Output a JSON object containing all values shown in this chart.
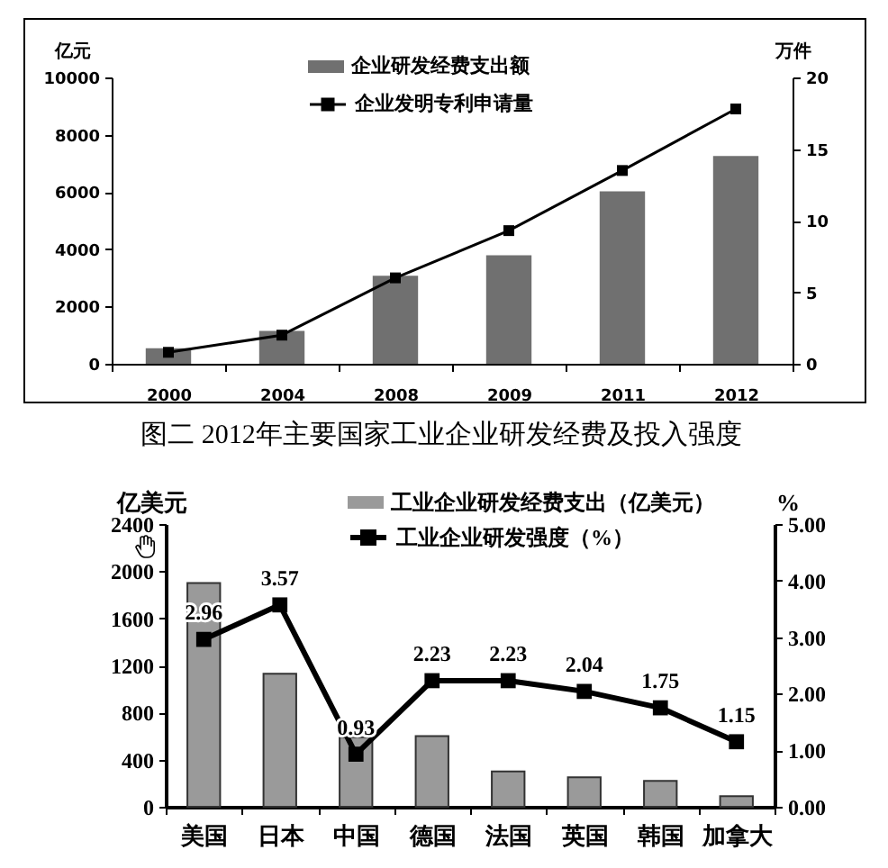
{
  "chart_data": [
    {
      "type": "bar",
      "categories": [
        "2000",
        "2004",
        "2008",
        "2009",
        "2011",
        "2012"
      ],
      "series": [
        {
          "name": "企业研发经费支出额",
          "color": "#707070",
          "values": [
            540,
            1150,
            3070,
            3790,
            6020,
            7260
          ]
        },
        {
          "name": "企业发明专利申请量",
          "type": "line",
          "axis": "y2",
          "color": "#000000",
          "values": [
            0.8,
            2.0,
            6.0,
            9.3,
            13.5,
            17.8
          ]
        }
      ],
      "ylabel": "亿元",
      "y2label": "万件",
      "ylim": [
        0,
        10000
      ],
      "yticks": [
        0,
        2000,
        4000,
        6000,
        8000,
        10000
      ],
      "y2lim": [
        0,
        20
      ],
      "y2ticks": [
        0,
        5,
        10,
        15,
        20
      ],
      "legend": "top",
      "marker": "square"
    },
    {
      "type": "bar",
      "title": "图二 2012年主要国家工业企业研发经费及投入强度",
      "categories": [
        "美国",
        "日本",
        "中国",
        "德国",
        "法国",
        "英国",
        "韩国",
        "加拿大"
      ],
      "series": [
        {
          "name": "工业企业研发经费支出（亿美元）",
          "color": "#9a9a9a",
          "values": [
            1900,
            1130,
            590,
            600,
            300,
            250,
            220,
            90
          ]
        },
        {
          "name": "工业企业研发强度（%）",
          "type": "line",
          "axis": "y2",
          "color": "#000000",
          "values": [
            2.96,
            3.57,
            0.93,
            2.23,
            2.23,
            2.04,
            1.75,
            1.15
          ],
          "value_labels": [
            "2.96",
            "3.57",
            "0.93",
            "2.23",
            "2.23",
            "2.04",
            "1.75",
            "1.15"
          ]
        }
      ],
      "ylabel": "亿美元",
      "y2label": "%",
      "ylim": [
        0,
        2400
      ],
      "yticks": [
        0,
        400,
        800,
        1200,
        1600,
        2000,
        2400
      ],
      "y2lim": [
        0,
        5
      ],
      "y2ticks": [
        {
          "value": 0,
          "label": "0.00"
        },
        {
          "value": 1,
          "label": "1.00"
        },
        {
          "value": 2,
          "label": "2.00"
        },
        {
          "value": 3,
          "label": "3.00"
        },
        {
          "value": 4,
          "label": "4.00"
        },
        {
          "value": 5,
          "label": "5.00"
        }
      ],
      "legend": "top",
      "marker": "square"
    }
  ]
}
